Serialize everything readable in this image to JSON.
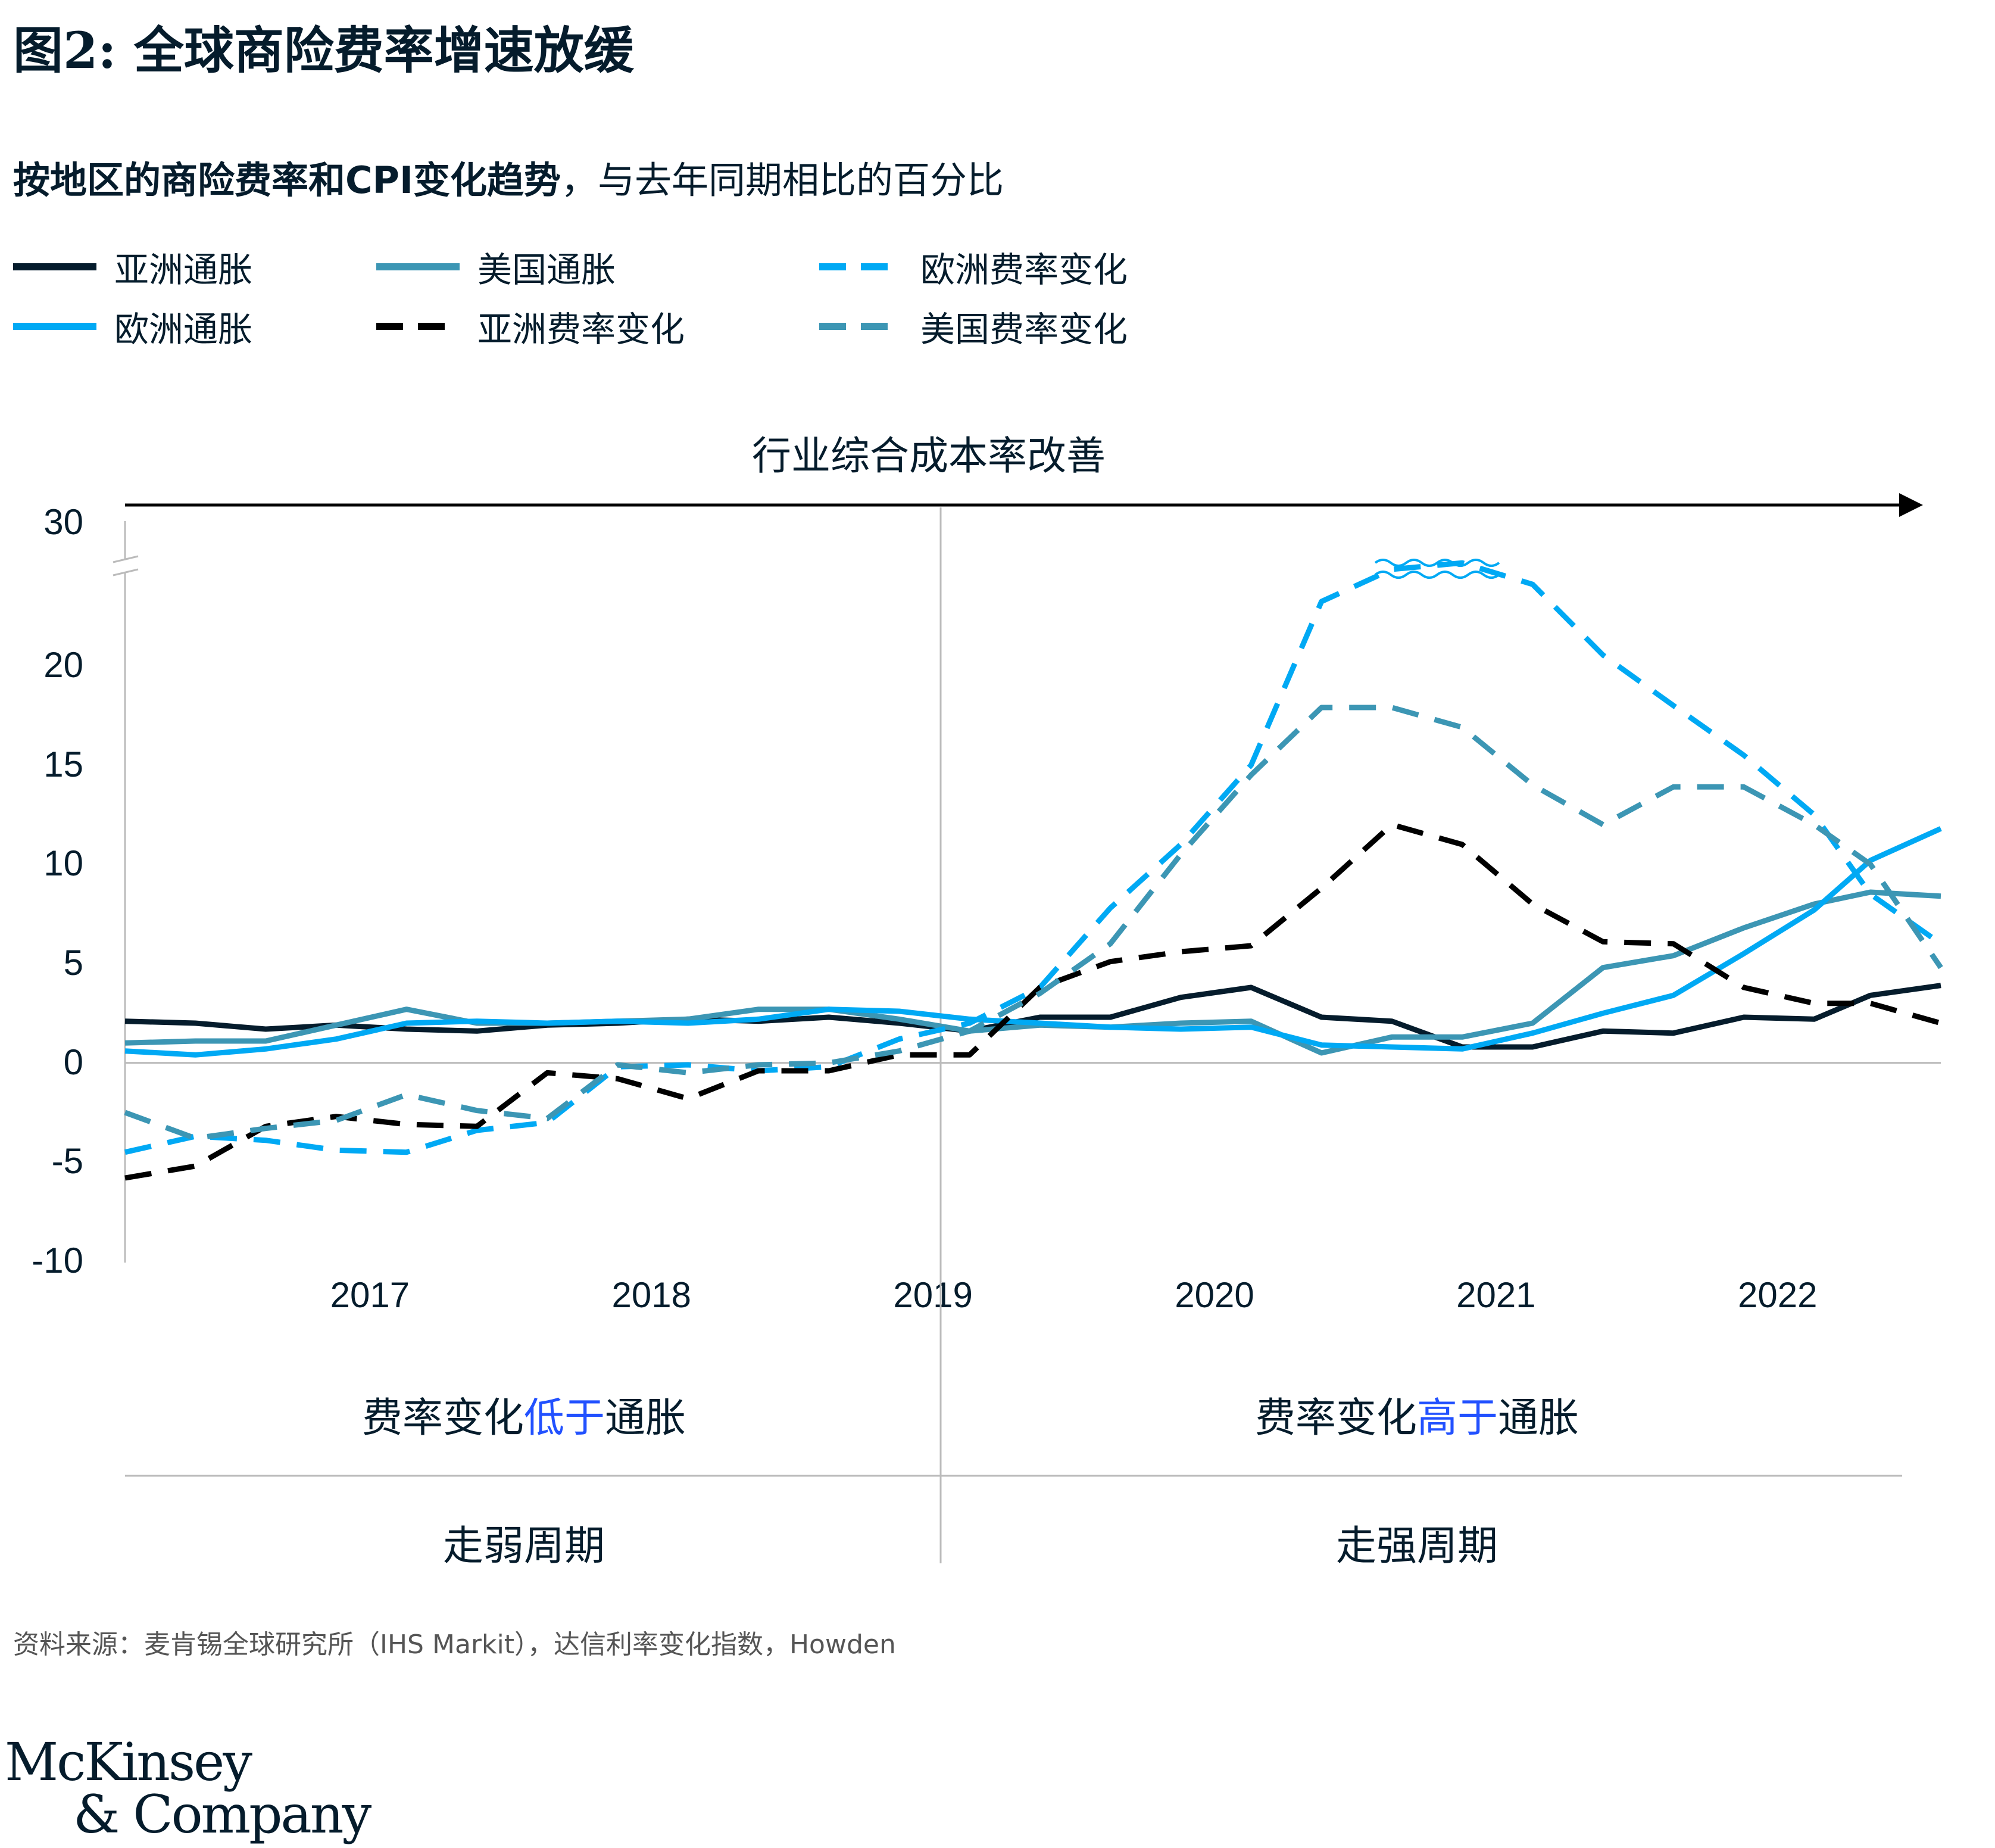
{
  "title": "图2: 全球商险费率增速放缓",
  "subtitle": {
    "bold": "按地区的商险费率和CPI变化趋势",
    "normal": "，与去年同期相比的百分比"
  },
  "legend": [
    {
      "label": "亚洲通胀",
      "color": "#051c2c",
      "dash": false
    },
    {
      "label": "美国通胀",
      "color": "#3c96b4",
      "dash": false
    },
    {
      "label": "欧洲费率变化",
      "color": "#00a9f4",
      "dash": true
    },
    {
      "label": "欧洲通胀",
      "color": "#00a9f4",
      "dash": false
    },
    {
      "label": "亚洲费率变化",
      "color": "#000000",
      "dash": true
    },
    {
      "label": "美国费率变化",
      "color": "#3c96b4",
      "dash": true
    }
  ],
  "arrow_label": "行业综合成本率改善",
  "regions": {
    "left_top": {
      "a": "费率变化",
      "b": "低于",
      "c": "通胀"
    },
    "right_top": {
      "a": "费率变化",
      "b": "高于",
      "c": "通胀"
    },
    "left_bottom": "走弱周期",
    "right_bottom": "走强周期"
  },
  "source": "资料来源：麦肯锡全球研究所（IHS Markit），达信利率变化指数，Howden",
  "logo": {
    "line1": "McKinsey",
    "line2": "& Company"
  },
  "chart_data": {
    "type": "line",
    "title": "图2: 全球商险费率增速放缓",
    "ylabel": "",
    "xlabel": "",
    "yticks": [
      -10,
      -5,
      0,
      5,
      10,
      15,
      20,
      30
    ],
    "y_axis_break": "between 20 and 30",
    "x_tick_labels": [
      "2017",
      "2018",
      "2019",
      "2020",
      "2021",
      "2022"
    ],
    "x_tick_positions": [
      2017,
      2018,
      2019,
      2020,
      2021,
      2022
    ],
    "xlim": [
      2016.13,
      2022.58
    ],
    "x": [
      2016.13,
      2016.38,
      2016.63,
      2016.88,
      2017.13,
      2017.38,
      2017.63,
      2017.88,
      2018.13,
      2018.38,
      2018.63,
      2018.88,
      2019.13,
      2019.38,
      2019.63,
      2019.88,
      2020.13,
      2020.38,
      2020.63,
      2020.88,
      2021.13,
      2021.38,
      2021.63,
      2021.88,
      2022.13,
      2022.33,
      2022.58
    ],
    "series": [
      {
        "name": "亚洲通胀",
        "color": "#051c2c",
        "dash": false,
        "values": [
          2.1,
          2.0,
          1.7,
          1.9,
          1.7,
          1.6,
          1.9,
          2.0,
          2.2,
          2.1,
          2.3,
          2.0,
          1.6,
          2.3,
          2.3,
          3.3,
          3.8,
          2.3,
          2.1,
          0.8,
          0.8,
          1.6,
          1.5,
          2.3,
          2.2,
          3.4,
          3.9
        ]
      },
      {
        "name": "美国通胀",
        "color": "#3c96b4",
        "dash": false,
        "values": [
          1.0,
          1.1,
          1.1,
          1.9,
          2.7,
          2.0,
          2.0,
          2.1,
          2.2,
          2.7,
          2.7,
          2.2,
          1.6,
          1.9,
          1.8,
          2.0,
          2.1,
          0.5,
          1.3,
          1.3,
          2.0,
          4.8,
          5.4,
          6.8,
          8.0,
          8.6,
          8.4
        ]
      },
      {
        "name": "欧洲通胀",
        "color": "#00a9f4",
        "dash": false,
        "values": [
          0.6,
          0.4,
          0.7,
          1.2,
          2.0,
          2.1,
          2.0,
          2.1,
          2.0,
          2.2,
          2.7,
          2.6,
          2.2,
          2.0,
          1.8,
          1.7,
          1.8,
          0.9,
          0.8,
          0.7,
          1.5,
          2.5,
          3.4,
          5.5,
          7.7,
          10.2,
          11.8
        ]
      },
      {
        "name": "欧洲费率变化",
        "color": "#00a9f4",
        "dash": true,
        "values": [
          -4.5,
          -3.7,
          -3.9,
          -4.4,
          -4.5,
          -3.4,
          -3.0,
          -0.2,
          -0.1,
          -0.4,
          -0.2,
          1.2,
          2.0,
          3.8,
          7.8,
          11.0,
          15.0,
          23.0,
          24.5,
          24.8,
          23.8,
          20.5,
          18.0,
          15.5,
          12.5,
          8.5,
          6.0
        ]
      },
      {
        "name": "亚洲费率变化",
        "color": "#000000",
        "dash": true,
        "values": [
          -5.8,
          -5.2,
          -3.2,
          -2.7,
          -3.1,
          -3.2,
          -0.5,
          -0.8,
          -1.8,
          -0.4,
          -0.4,
          0.4,
          0.4,
          3.8,
          5.1,
          5.6,
          5.9,
          8.8,
          12.0,
          11.0,
          8.0,
          6.1,
          6.0,
          3.8,
          3.0,
          3.0,
          2.0
        ]
      },
      {
        "name": "美国费率变化",
        "color": "#3c96b4",
        "dash": true,
        "values": [
          -2.5,
          -3.8,
          -3.3,
          -2.9,
          -1.6,
          -2.4,
          -2.8,
          -0.1,
          -0.5,
          -0.1,
          0.0,
          0.6,
          1.6,
          3.5,
          6.0,
          10.5,
          14.5,
          17.9,
          17.9,
          16.9,
          14.0,
          12.0,
          13.9,
          13.9,
          12.0,
          10.0,
          4.8
        ]
      }
    ]
  }
}
